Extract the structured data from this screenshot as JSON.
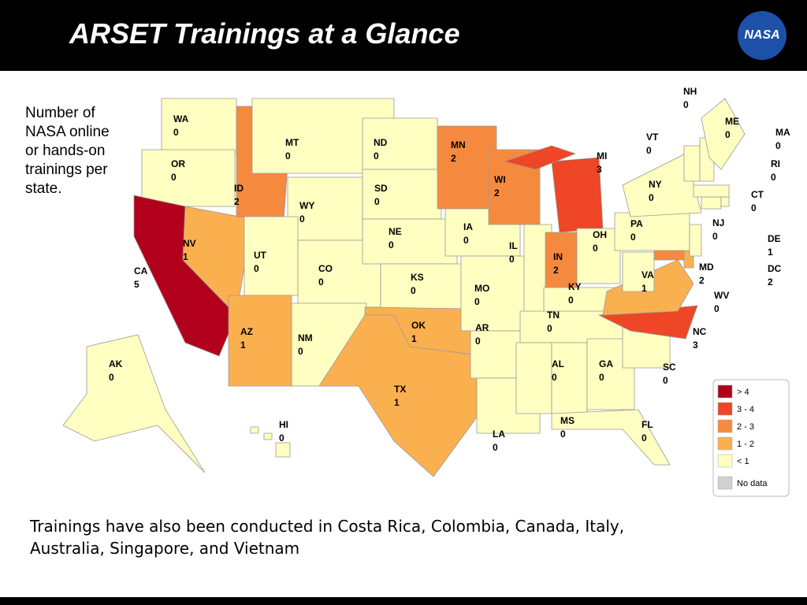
{
  "header": {
    "title": "ARSET Trainings at a Glance",
    "logo_text": "NASA"
  },
  "side_note": [
    "Number of",
    "NASA online",
    "or hands-on",
    "trainings per",
    "state."
  ],
  "states": [
    {
      "abbr": "WA",
      "count": 0,
      "color": "#ffffc2"
    },
    {
      "abbr": "OR",
      "count": 0,
      "color": "#ffffc2"
    },
    {
      "abbr": "CA",
      "count": 5,
      "color": "#b2001c"
    },
    {
      "abbr": "NV",
      "count": 1,
      "color": "#fbb050"
    },
    {
      "abbr": "ID",
      "count": 2,
      "color": "#f58a3f"
    },
    {
      "abbr": "MT",
      "count": 0,
      "color": "#ffffc2"
    },
    {
      "abbr": "WY",
      "count": 0,
      "color": "#ffffc2"
    },
    {
      "abbr": "UT",
      "count": 0,
      "color": "#ffffc2"
    },
    {
      "abbr": "CO",
      "count": 0,
      "color": "#ffffc2"
    },
    {
      "abbr": "AZ",
      "count": 1,
      "color": "#fbb050"
    },
    {
      "abbr": "NM",
      "count": 0,
      "color": "#ffffc2"
    },
    {
      "abbr": "ND",
      "count": 0,
      "color": "#ffffc2"
    },
    {
      "abbr": "SD",
      "count": 0,
      "color": "#ffffc2"
    },
    {
      "abbr": "NE",
      "count": 0,
      "color": "#ffffc2"
    },
    {
      "abbr": "KS",
      "count": 0,
      "color": "#ffffc2"
    },
    {
      "abbr": "OK",
      "count": 1,
      "color": "#fbb050"
    },
    {
      "abbr": "TX",
      "count": 1,
      "color": "#fbb050"
    },
    {
      "abbr": "MN",
      "count": 2,
      "color": "#f58a3f"
    },
    {
      "abbr": "IA",
      "count": 0,
      "color": "#ffffc2"
    },
    {
      "abbr": "MO",
      "count": 0,
      "color": "#ffffc2"
    },
    {
      "abbr": "AR",
      "count": 0,
      "color": "#ffffc2"
    },
    {
      "abbr": "LA",
      "count": 0,
      "color": "#ffffc2"
    },
    {
      "abbr": "WI",
      "count": 2,
      "color": "#f58a3f"
    },
    {
      "abbr": "IL",
      "count": 0,
      "color": "#ffffc2"
    },
    {
      "abbr": "MI",
      "count": 3,
      "color": "#ee4626"
    },
    {
      "abbr": "IN",
      "count": 2,
      "color": "#f58a3f"
    },
    {
      "abbr": "OH",
      "count": 0,
      "color": "#ffffc2"
    },
    {
      "abbr": "KY",
      "count": 0,
      "color": "#ffffc2"
    },
    {
      "abbr": "TN",
      "count": 0,
      "color": "#ffffc2"
    },
    {
      "abbr": "MS",
      "count": 0,
      "color": "#ffffc2"
    },
    {
      "abbr": "AL",
      "count": 0,
      "color": "#ffffc2"
    },
    {
      "abbr": "GA",
      "count": 0,
      "color": "#ffffc2"
    },
    {
      "abbr": "FL",
      "count": 0,
      "color": "#ffffc2"
    },
    {
      "abbr": "SC",
      "count": 0,
      "color": "#ffffc2"
    },
    {
      "abbr": "NC",
      "count": 3,
      "color": "#ee4626"
    },
    {
      "abbr": "VA",
      "count": 1,
      "color": "#fbb050"
    },
    {
      "abbr": "WV",
      "count": 0,
      "color": "#ffffc2"
    },
    {
      "abbr": "MD",
      "count": 2,
      "color": "#f58a3f"
    },
    {
      "abbr": "DE",
      "count": 1,
      "color": "#fbb050"
    },
    {
      "abbr": "DC",
      "count": 2,
      "color": "#f58a3f"
    },
    {
      "abbr": "PA",
      "count": 0,
      "color": "#ffffc2"
    },
    {
      "abbr": "NJ",
      "count": 0,
      "color": "#ffffc2"
    },
    {
      "abbr": "NY",
      "count": 0,
      "color": "#ffffc2"
    },
    {
      "abbr": "CT",
      "count": 0,
      "color": "#ffffc2"
    },
    {
      "abbr": "RI",
      "count": 0,
      "color": "#ffffc2"
    },
    {
      "abbr": "MA",
      "count": 0,
      "color": "#ffffc2"
    },
    {
      "abbr": "VT",
      "count": 0,
      "color": "#ffffc2"
    },
    {
      "abbr": "NH",
      "count": 0,
      "color": "#ffffc2"
    },
    {
      "abbr": "ME",
      "count": 0,
      "color": "#ffffc2"
    },
    {
      "abbr": "AK",
      "count": 0,
      "color": "#ffffc2"
    },
    {
      "abbr": "HI",
      "count": 0,
      "color": "#ffffc2"
    }
  ],
  "legend": [
    {
      "label": "> 4",
      "color": "#b2001c"
    },
    {
      "label": "3 - 4",
      "color": "#ee4626"
    },
    {
      "label": "2 - 3",
      "color": "#f58a3f"
    },
    {
      "label": "1 - 2",
      "color": "#fbb050"
    },
    {
      "label": "< 1",
      "color": "#ffffc2"
    },
    {
      "label": "No data",
      "color": "#d0d0d0"
    }
  ],
  "footer": [
    "Trainings have also been conducted in Costa Rica, Colombia, Canada, Italy,",
    "Australia, Singapore, and Vietnam"
  ]
}
